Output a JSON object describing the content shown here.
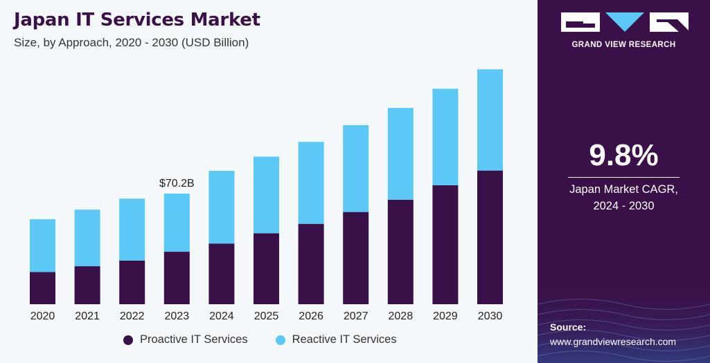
{
  "header": {
    "title": "Japan IT Services Market",
    "subtitle": "Size, by Approach, 2020 - 2030 (USD Billion)"
  },
  "chart_data": {
    "type": "bar",
    "stacked": true,
    "categories": [
      "2020",
      "2021",
      "2022",
      "2023",
      "2024",
      "2025",
      "2026",
      "2027",
      "2028",
      "2029",
      "2030"
    ],
    "series": [
      {
        "name": "Proactive IT Services",
        "color": "#3a1048",
        "values": [
          20.4,
          24.1,
          27.7,
          33.3,
          38.5,
          45.0,
          51.0,
          58.5,
          66.3,
          75.5,
          84.8
        ]
      },
      {
        "name": "Reactive IT Services",
        "color": "#5bc8f5",
        "values": [
          33.5,
          35.9,
          39.3,
          36.9,
          46.1,
          48.6,
          52.0,
          55.1,
          58.2,
          61.2,
          64.2
        ]
      }
    ],
    "totals": [
      53.9,
      60.0,
      67.0,
      70.2,
      84.6,
      93.6,
      103.0,
      113.6,
      124.5,
      136.7,
      149.0
    ],
    "annotations": [
      {
        "category": "2023",
        "text": "$70.2B"
      }
    ],
    "ylim": [
      0,
      150
    ],
    "grid": false,
    "legend_position": "bottom"
  },
  "sidebar": {
    "brand": "GRAND VIEW RESEARCH",
    "cagr_value": "9.8%",
    "cagr_label": "Japan Market CAGR,",
    "cagr_period": "2024 - 2030",
    "source_title": "Source:",
    "source_url": "www.grandviewresearch.com",
    "logo_icon": "gvr-logo-icon"
  }
}
